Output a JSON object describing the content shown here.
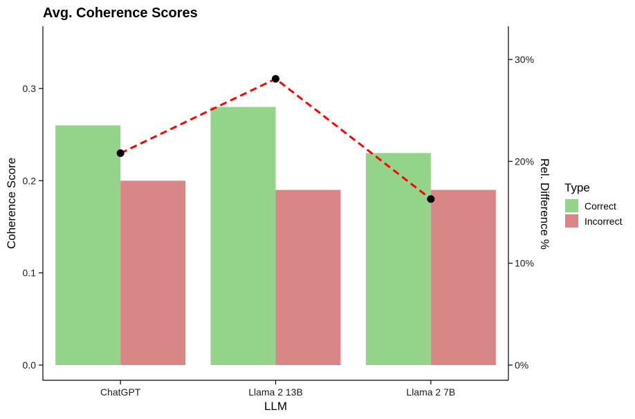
{
  "chart_data": {
    "type": "bar",
    "title": "Avg. Coherence Scores",
    "xlabel": "LLM",
    "ylabel": "Coherence Score",
    "y2label": "Rel. Difference %",
    "categories": [
      "ChatGPT",
      "Llama 2 13B",
      "Llama 2 7B"
    ],
    "ylim": [
      0.0,
      0.36
    ],
    "y_ticks": [
      0.0,
      0.1,
      0.2,
      0.3
    ],
    "y_tick_labels": [
      "0.0",
      "0.1",
      "0.2",
      "0.3"
    ],
    "y2lim": [
      0,
      33
    ],
    "y2_ticks": [
      0,
      10,
      20,
      30
    ],
    "y2_tick_labels": [
      "0%",
      "10%",
      "20%",
      "30%"
    ],
    "series": [
      {
        "name": "Correct",
        "color": "#93d38a",
        "values": [
          0.26,
          0.28,
          0.23
        ]
      },
      {
        "name": "Incorrect",
        "color": "#d98686",
        "values": [
          0.2,
          0.19,
          0.19
        ]
      }
    ],
    "line_series": {
      "axis": "secondary",
      "color": "#ff0000",
      "style": "dashed",
      "marker_color": "#000000",
      "values": [
        20.8,
        28.1,
        16.3
      ]
    },
    "legend": {
      "title": "Type",
      "position": "right"
    },
    "grid": false
  }
}
